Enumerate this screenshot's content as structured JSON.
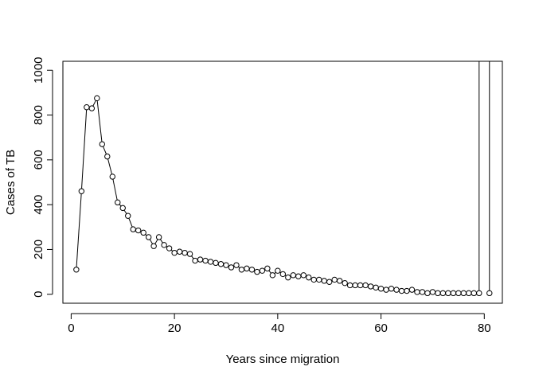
{
  "chart_data": {
    "type": "line",
    "title": "",
    "xlabel": "Years since migration",
    "ylabel": "Cases of TB",
    "xlim": [
      -1.6,
      83.5
    ],
    "ylim": [
      -40,
      1040
    ],
    "x_ticks": [
      0,
      20,
      40,
      60,
      80
    ],
    "x_tick_labels": [
      "0",
      "20",
      "40",
      "60",
      "80"
    ],
    "y_ticks": [
      0,
      200,
      400,
      600,
      800,
      1000
    ],
    "y_tick_labels": [
      "0",
      "200",
      "400",
      "600",
      "800",
      "1000"
    ],
    "grid": false,
    "legend": "none",
    "marker": "open-circle",
    "line_color": "#000000",
    "series": [
      {
        "x": [
          1,
          2,
          3,
          4,
          5,
          6,
          7,
          8,
          9,
          10,
          11,
          12,
          13,
          14,
          15,
          16,
          17,
          18,
          19,
          20,
          21,
          22,
          23,
          24,
          25,
          26,
          27,
          28,
          29,
          30,
          31,
          32,
          33,
          34,
          35,
          36,
          37,
          38,
          39,
          40,
          41,
          42,
          43,
          44,
          45,
          46,
          47,
          48,
          49,
          50,
          51,
          52,
          53,
          54,
          55,
          56,
          57,
          58,
          59,
          60,
          61,
          62,
          63,
          64,
          65,
          66,
          67,
          68,
          69,
          70,
          71,
          72,
          73,
          74,
          75,
          76,
          77,
          78,
          79,
          81
        ],
        "y": [
          110,
          460,
          835,
          830,
          875,
          670,
          615,
          525,
          410,
          385,
          350,
          290,
          285,
          275,
          255,
          215,
          255,
          220,
          205,
          185,
          190,
          185,
          180,
          150,
          155,
          150,
          145,
          140,
          135,
          130,
          120,
          130,
          110,
          115,
          110,
          100,
          105,
          115,
          85,
          105,
          90,
          75,
          85,
          80,
          85,
          75,
          65,
          65,
          60,
          55,
          65,
          60,
          50,
          40,
          40,
          40,
          40,
          35,
          30,
          25,
          20,
          25,
          20,
          15,
          15,
          20,
          10,
          10,
          5,
          10,
          5,
          5,
          5,
          5,
          5,
          5,
          5,
          5,
          5,
          5
        ]
      }
    ],
    "vertical_spikes": [
      {
        "x": 79,
        "from": 5,
        "to": 1100
      },
      {
        "x": 81,
        "from": 5,
        "to": 1100
      }
    ]
  }
}
